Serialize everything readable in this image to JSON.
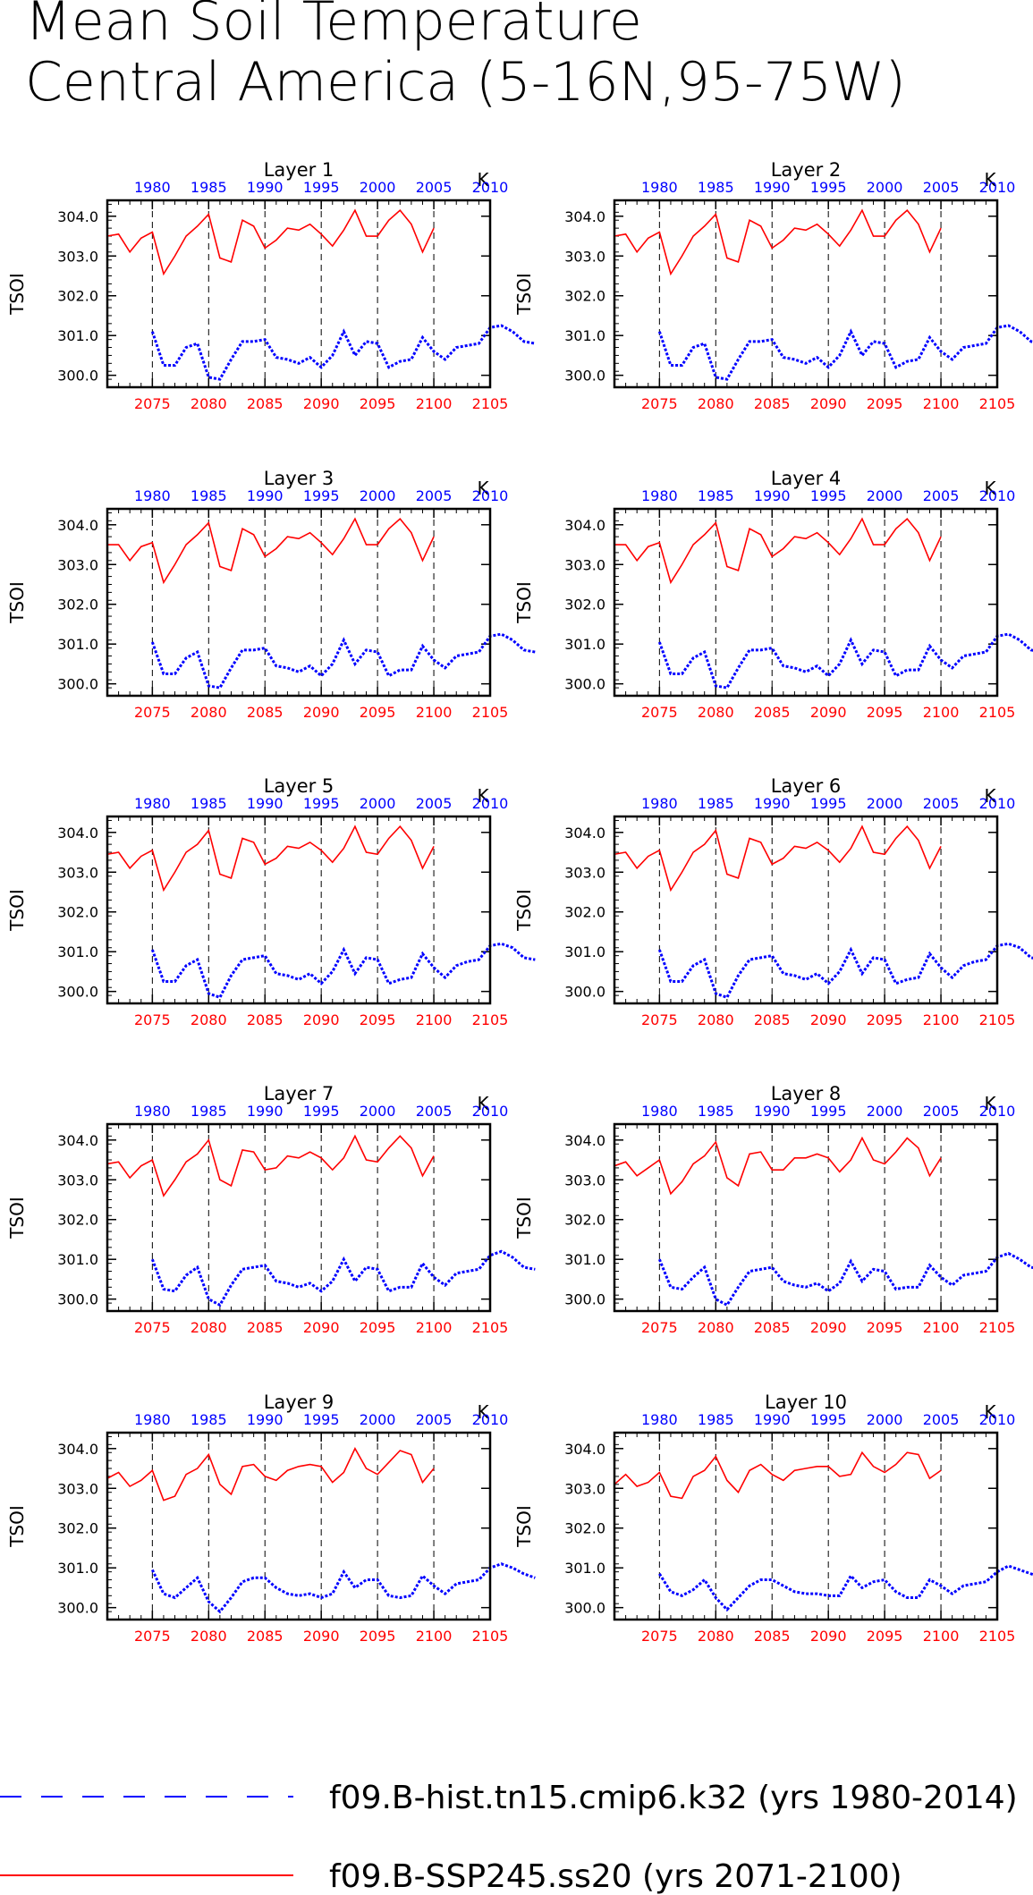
{
  "title_line1": "Mean Soil Temperature",
  "title_line2": "Central America (5-16N,95-75W)",
  "units": "K",
  "ylabel": "TSOI",
  "colors": {
    "hist": "#0000ff",
    "ssp": "#ff0000",
    "axis": "#000000"
  },
  "legend": {
    "hist_label": "f09.B-hist.tn15.cmip6.k32 (yrs 1980-2014)",
    "ssp_label": "f09.B-SSP245.ss20 (yrs 2071-2100)"
  },
  "chart_data": {
    "type": "line",
    "ylim": [
      299.7,
      304.4
    ],
    "yticks": [
      "300.0",
      "301.0",
      "302.0",
      "303.0",
      "304.0"
    ],
    "x_bottom_ticks": [
      "2075",
      "2080",
      "2085",
      "2090",
      "2095",
      "2100",
      "2105"
    ],
    "x_top_ticks": [
      "1980",
      "1985",
      "1990",
      "1995",
      "2000",
      "2005",
      "2010"
    ],
    "bottom_range": [
      2071,
      2105
    ],
    "top_range": [
      1976,
      2010
    ],
    "grid": "dashed vertical lines at bottom ticks",
    "legend_position": "bottom",
    "panels": [
      {
        "title": "Layer 1",
        "hist": {
          "name": "f09.B-hist.tn15.cmip6.k32",
          "start_year": 1980,
          "values": [
            301.1,
            300.25,
            300.25,
            300.7,
            300.8,
            299.95,
            299.9,
            300.4,
            300.85,
            300.85,
            300.9,
            300.45,
            300.4,
            300.3,
            300.45,
            300.2,
            300.5,
            301.1,
            300.5,
            300.85,
            300.8,
            300.2,
            300.35,
            300.4,
            300.95,
            300.6,
            300.4,
            300.7,
            300.75,
            300.8,
            301.2,
            301.25,
            301.1,
            300.85,
            300.8
          ]
        },
        "ssp": {
          "name": "f09.B-SSP245.ss20",
          "start_year": 2071,
          "values": [
            303.5,
            303.55,
            303.1,
            303.45,
            303.6,
            302.55,
            303.0,
            303.5,
            303.75,
            304.05,
            302.95,
            302.85,
            303.9,
            303.75,
            303.2,
            303.4,
            303.7,
            303.65,
            303.8,
            303.55,
            303.25,
            303.65,
            304.15,
            303.5,
            303.5,
            303.9,
            304.15,
            303.8,
            303.1,
            303.7
          ]
        }
      },
      {
        "title": "Layer 2",
        "hist": {
          "name": "f09.B-hist.tn15.cmip6.k32",
          "start_year": 1980,
          "values": [
            301.1,
            300.25,
            300.25,
            300.7,
            300.8,
            299.95,
            299.9,
            300.4,
            300.85,
            300.85,
            300.9,
            300.45,
            300.4,
            300.3,
            300.45,
            300.2,
            300.5,
            301.1,
            300.5,
            300.85,
            300.8,
            300.2,
            300.35,
            300.4,
            300.95,
            300.6,
            300.4,
            300.7,
            300.75,
            300.8,
            301.2,
            301.25,
            301.1,
            300.85,
            300.8
          ]
        },
        "ssp": {
          "name": "f09.B-SSP245.ss20",
          "start_year": 2071,
          "values": [
            303.5,
            303.55,
            303.1,
            303.45,
            303.6,
            302.55,
            303.0,
            303.5,
            303.75,
            304.05,
            302.95,
            302.85,
            303.9,
            303.75,
            303.2,
            303.4,
            303.7,
            303.65,
            303.8,
            303.55,
            303.25,
            303.65,
            304.15,
            303.5,
            303.5,
            303.9,
            304.15,
            303.8,
            303.1,
            303.7
          ]
        }
      },
      {
        "title": "Layer 3",
        "hist": {
          "name": "f09.B-hist.tn15.cmip6.k32",
          "start_year": 1980,
          "values": [
            301.05,
            300.25,
            300.25,
            300.65,
            300.8,
            299.95,
            299.9,
            300.4,
            300.85,
            300.85,
            300.9,
            300.45,
            300.4,
            300.3,
            300.45,
            300.2,
            300.5,
            301.1,
            300.5,
            300.85,
            300.8,
            300.2,
            300.35,
            300.35,
            300.95,
            300.6,
            300.4,
            300.7,
            300.75,
            300.8,
            301.2,
            301.25,
            301.1,
            300.85,
            300.8
          ]
        },
        "ssp": {
          "name": "f09.B-SSP245.ss20",
          "start_year": 2071,
          "values": [
            303.5,
            303.5,
            303.1,
            303.45,
            303.55,
            302.55,
            303.0,
            303.5,
            303.75,
            304.05,
            302.95,
            302.85,
            303.9,
            303.75,
            303.2,
            303.4,
            303.7,
            303.65,
            303.8,
            303.55,
            303.25,
            303.65,
            304.15,
            303.5,
            303.5,
            303.9,
            304.15,
            303.8,
            303.1,
            303.7
          ]
        }
      },
      {
        "title": "Layer 4",
        "hist": {
          "name": "f09.B-hist.tn15.cmip6.k32",
          "start_year": 1980,
          "values": [
            301.05,
            300.25,
            300.25,
            300.65,
            300.8,
            299.95,
            299.9,
            300.4,
            300.85,
            300.85,
            300.9,
            300.45,
            300.4,
            300.3,
            300.45,
            300.2,
            300.5,
            301.1,
            300.5,
            300.85,
            300.8,
            300.2,
            300.35,
            300.35,
            300.95,
            300.6,
            300.4,
            300.7,
            300.75,
            300.8,
            301.2,
            301.25,
            301.1,
            300.85,
            300.8
          ]
        },
        "ssp": {
          "name": "f09.B-SSP245.ss20",
          "start_year": 2071,
          "values": [
            303.5,
            303.5,
            303.1,
            303.45,
            303.55,
            302.55,
            303.0,
            303.5,
            303.75,
            304.05,
            302.95,
            302.85,
            303.9,
            303.75,
            303.2,
            303.4,
            303.7,
            303.65,
            303.8,
            303.55,
            303.25,
            303.65,
            304.15,
            303.5,
            303.5,
            303.9,
            304.15,
            303.8,
            303.1,
            303.7
          ]
        }
      },
      {
        "title": "Layer 5",
        "hist": {
          "name": "f09.B-hist.tn15.cmip6.k32",
          "start_year": 1980,
          "values": [
            301.05,
            300.25,
            300.25,
            300.65,
            300.8,
            299.95,
            299.85,
            300.4,
            300.8,
            300.85,
            300.9,
            300.45,
            300.4,
            300.3,
            300.45,
            300.2,
            300.5,
            301.05,
            300.45,
            300.85,
            300.8,
            300.2,
            300.3,
            300.35,
            300.95,
            300.6,
            300.35,
            300.65,
            300.75,
            300.8,
            301.15,
            301.2,
            301.1,
            300.85,
            300.8
          ]
        },
        "ssp": {
          "name": "f09.B-SSP245.ss20",
          "start_year": 2071,
          "values": [
            303.45,
            303.5,
            303.1,
            303.4,
            303.55,
            302.55,
            303.0,
            303.5,
            303.7,
            304.05,
            302.95,
            302.85,
            303.85,
            303.75,
            303.2,
            303.35,
            303.65,
            303.6,
            303.75,
            303.55,
            303.25,
            303.6,
            304.15,
            303.5,
            303.45,
            303.85,
            304.15,
            303.8,
            303.1,
            303.65
          ]
        }
      },
      {
        "title": "Layer 6",
        "hist": {
          "name": "f09.B-hist.tn15.cmip6.k32",
          "start_year": 1980,
          "values": [
            301.05,
            300.25,
            300.25,
            300.65,
            300.8,
            299.95,
            299.85,
            300.4,
            300.8,
            300.85,
            300.9,
            300.45,
            300.4,
            300.3,
            300.45,
            300.2,
            300.5,
            301.05,
            300.45,
            300.85,
            300.8,
            300.2,
            300.3,
            300.35,
            300.95,
            300.6,
            300.35,
            300.65,
            300.75,
            300.8,
            301.15,
            301.2,
            301.1,
            300.85,
            300.8
          ]
        },
        "ssp": {
          "name": "f09.B-SSP245.ss20",
          "start_year": 2071,
          "values": [
            303.45,
            303.5,
            303.1,
            303.4,
            303.55,
            302.55,
            303.0,
            303.5,
            303.7,
            304.05,
            302.95,
            302.85,
            303.85,
            303.75,
            303.2,
            303.35,
            303.65,
            303.6,
            303.75,
            303.55,
            303.25,
            303.6,
            304.15,
            303.5,
            303.45,
            303.85,
            304.15,
            303.8,
            303.1,
            303.65
          ]
        }
      },
      {
        "title": "Layer 7",
        "hist": {
          "name": "f09.B-hist.tn15.cmip6.k32",
          "start_year": 1980,
          "values": [
            301.0,
            300.25,
            300.2,
            300.6,
            300.8,
            300.0,
            299.85,
            300.35,
            300.75,
            300.8,
            300.85,
            300.45,
            300.4,
            300.3,
            300.4,
            300.2,
            300.45,
            301.0,
            300.45,
            300.8,
            300.75,
            300.2,
            300.3,
            300.3,
            300.9,
            300.55,
            300.35,
            300.65,
            300.7,
            300.75,
            301.1,
            301.2,
            301.05,
            300.8,
            300.75
          ]
        },
        "ssp": {
          "name": "f09.B-SSP245.ss20",
          "start_year": 2071,
          "values": [
            303.4,
            303.45,
            303.05,
            303.35,
            303.5,
            302.6,
            303.0,
            303.45,
            303.65,
            304.0,
            303.0,
            302.85,
            303.75,
            303.7,
            303.25,
            303.3,
            303.6,
            303.55,
            303.7,
            303.55,
            303.25,
            303.55,
            304.1,
            303.5,
            303.45,
            303.8,
            304.1,
            303.8,
            303.1,
            303.6
          ]
        }
      },
      {
        "title": "Layer 8",
        "hist": {
          "name": "f09.B-hist.tn15.cmip6.k32",
          "start_year": 1980,
          "values": [
            301.0,
            300.3,
            300.25,
            300.55,
            300.8,
            300.0,
            299.85,
            300.3,
            300.7,
            300.75,
            300.8,
            300.45,
            300.35,
            300.3,
            300.4,
            300.2,
            300.4,
            300.95,
            300.45,
            300.75,
            300.7,
            300.25,
            300.3,
            300.3,
            300.85,
            300.55,
            300.35,
            300.6,
            300.65,
            300.7,
            301.05,
            301.15,
            301.0,
            300.8,
            300.75
          ]
        },
        "ssp": {
          "name": "f09.B-SSP245.ss20",
          "start_year": 2071,
          "values": [
            303.35,
            303.45,
            303.1,
            303.3,
            303.5,
            302.65,
            302.95,
            303.4,
            303.6,
            303.95,
            303.05,
            302.85,
            303.65,
            303.7,
            303.25,
            303.25,
            303.55,
            303.55,
            303.65,
            303.55,
            303.2,
            303.5,
            304.05,
            303.5,
            303.4,
            303.7,
            304.05,
            303.8,
            303.1,
            303.55
          ]
        }
      },
      {
        "title": "Layer 9",
        "hist": {
          "name": "f09.B-hist.tn15.cmip6.k32",
          "start_year": 1980,
          "values": [
            300.95,
            300.35,
            300.25,
            300.5,
            300.75,
            300.15,
            299.9,
            300.25,
            300.65,
            300.75,
            300.75,
            300.5,
            300.35,
            300.3,
            300.35,
            300.25,
            300.35,
            300.9,
            300.5,
            300.7,
            300.7,
            300.3,
            300.25,
            300.3,
            300.8,
            300.55,
            300.35,
            300.6,
            300.65,
            300.7,
            301.0,
            301.1,
            301.0,
            300.85,
            300.75
          ]
        },
        "ssp": {
          "name": "f09.B-SSP245.ss20",
          "start_year": 2071,
          "values": [
            303.25,
            303.4,
            303.05,
            303.2,
            303.45,
            302.7,
            302.8,
            303.35,
            303.5,
            303.85,
            303.1,
            302.85,
            303.55,
            303.6,
            303.3,
            303.2,
            303.45,
            303.55,
            303.6,
            303.55,
            303.15,
            303.4,
            304.0,
            303.5,
            303.35,
            303.65,
            303.95,
            303.85,
            303.15,
            303.5
          ]
        }
      },
      {
        "title": "Layer 10",
        "hist": {
          "name": "f09.B-hist.tn15.cmip6.k32",
          "start_year": 1980,
          "values": [
            300.85,
            300.4,
            300.3,
            300.45,
            300.7,
            300.25,
            299.95,
            300.25,
            300.55,
            300.7,
            300.7,
            300.55,
            300.4,
            300.35,
            300.35,
            300.3,
            300.3,
            300.8,
            300.5,
            300.65,
            300.7,
            300.4,
            300.25,
            300.25,
            300.7,
            300.55,
            300.35,
            300.55,
            300.6,
            300.65,
            300.9,
            301.05,
            300.95,
            300.85,
            300.75
          ]
        },
        "ssp": {
          "name": "f09.B-SSP245.ss20",
          "start_year": 2071,
          "values": [
            303.1,
            303.35,
            303.05,
            303.15,
            303.4,
            302.8,
            302.75,
            303.3,
            303.45,
            303.8,
            303.2,
            302.9,
            303.45,
            303.6,
            303.35,
            303.2,
            303.45,
            303.5,
            303.55,
            303.55,
            303.3,
            303.35,
            303.9,
            303.55,
            303.4,
            303.6,
            303.9,
            303.85,
            303.25,
            303.45
          ]
        }
      }
    ]
  }
}
